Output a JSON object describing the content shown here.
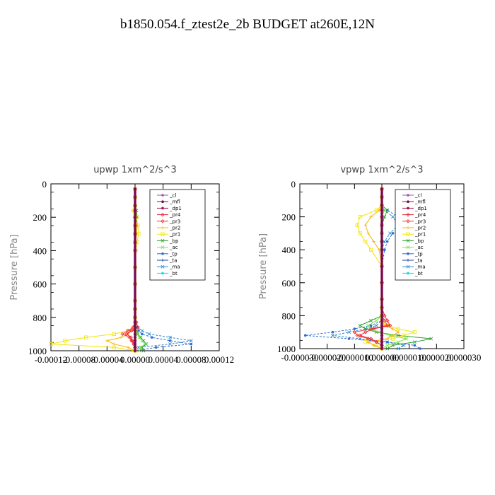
{
  "title": "b1850.054.f_ztest2e_2b  BUDGET at260E,12N",
  "colors": {
    "_cl": "#9b59b6",
    "_mfl": "#7a0a4a",
    "_dp1": "#a0104a",
    "_pr4": "#e8293a",
    "_pr3": "#f03c3c",
    "_pr2": "#ffb300",
    "_pr1": "#f2e600",
    "_bp": "#2ca02c",
    "_ac": "#7be34a",
    "_tp": "#2a6fd6",
    "_ta": "#1f3fa0",
    "_ma": "#2a88c8",
    "_bt": "#18d8e8"
  },
  "chart_data": [
    {
      "type": "line",
      "orientation": "vertical-profile",
      "title": "upwp   1xm^2/s^3",
      "ylabel": "Pressure [hPa]",
      "xlabel": "",
      "xlim": [
        -0.00012,
        0.00012
      ],
      "ylim": [
        1000,
        0
      ],
      "x_tick_labels": [
        "-0.00012",
        "-0.00008",
        "-0.00004",
        "0.00000",
        "0.00004",
        "0.00008",
        "0.00012"
      ],
      "y_tick_labels": [
        "0",
        "200",
        "400",
        "600",
        "800",
        "1000"
      ],
      "x_ticks": [
        -0.00012,
        -8e-05,
        -4e-05,
        0,
        4e-05,
        8e-05,
        0.00012
      ],
      "y_ticks": [
        0,
        200,
        400,
        600,
        800,
        1000
      ],
      "legend": [
        "_cl",
        "_mfl",
        "_dp1",
        "_pr4",
        "_pr3",
        "_pr2",
        "_pr1",
        "_bp",
        "_ac",
        "_tp",
        "_ta",
        "_ma",
        "_bt"
      ],
      "legend_position": "top-right",
      "pressure": [
        30,
        80,
        130,
        160,
        200,
        250,
        300,
        350,
        400,
        500,
        600,
        700,
        750,
        800,
        830,
        860,
        880,
        900,
        920,
        940,
        960,
        980,
        1000
      ],
      "series": [
        {
          "name": "_cl",
          "values": [
            0,
            0,
            0,
            0,
            0,
            0,
            0,
            0,
            0,
            0,
            0,
            0,
            0,
            0,
            0,
            0,
            0,
            0,
            0,
            0,
            0,
            0,
            0
          ]
        },
        {
          "name": "_mfl",
          "values": [
            0,
            0,
            0,
            0,
            0,
            0,
            0,
            0,
            0,
            0,
            0,
            0,
            0,
            0,
            0,
            0,
            0,
            0,
            0,
            0,
            0,
            0,
            0
          ]
        },
        {
          "name": "_dp1",
          "values": [
            0,
            0,
            0,
            0,
            0,
            0,
            0,
            0,
            0,
            0,
            0,
            0,
            0,
            0,
            0,
            0,
            0,
            0,
            0,
            0,
            0,
            0,
            0
          ]
        },
        {
          "name": "_pr4",
          "values": [
            0,
            0,
            0,
            0,
            0,
            0,
            0,
            0,
            0,
            0,
            0,
            0,
            0,
            0,
            2e-06,
            4e-06,
            -5e-06,
            -1.2e-05,
            -6e-06,
            -4e-06,
            -2e-06,
            0,
            0
          ]
        },
        {
          "name": "_pr3",
          "values": [
            0,
            0,
            0,
            0,
            0,
            0,
            0,
            0,
            0,
            0,
            0,
            0,
            0,
            0,
            0,
            -3e-06,
            -1e-05,
            -1.8e-05,
            -8e-06,
            -5e-06,
            -2e-06,
            0,
            0
          ]
        },
        {
          "name": "_pr2",
          "values": [
            0,
            0,
            0,
            -2e-06,
            -1e-06,
            3e-06,
            2e-06,
            1e-06,
            0,
            0,
            0,
            0,
            0,
            0,
            0,
            0,
            -5e-06,
            -1e-05,
            -2e-05,
            -4e-05,
            -3e-05,
            -1e-05,
            0
          ]
        },
        {
          "name": "_pr1",
          "values": [
            0,
            0,
            0,
            -2e-06,
            2e-06,
            4e-06,
            5e-06,
            3e-06,
            1e-06,
            0,
            0,
            0,
            0,
            0,
            0,
            -2e-06,
            -1e-05,
            -3e-05,
            -7e-05,
            -0.0001,
            -0.00012,
            -3e-05,
            0
          ]
        },
        {
          "name": "_bp",
          "values": [
            0,
            0,
            0,
            2e-06,
            3e-06,
            1e-06,
            0,
            0,
            0,
            0,
            0,
            0,
            0,
            0,
            0,
            0,
            2e-06,
            4e-06,
            8e-06,
            1.2e-05,
            1.6e-05,
            1e-05,
            1.2e-05
          ]
        },
        {
          "name": "_ac",
          "values": [
            0,
            0,
            0,
            1e-06,
            2e-06,
            0,
            0,
            0,
            0,
            0,
            0,
            0,
            0,
            0,
            0,
            0,
            2e-06,
            3e-06,
            6e-06,
            1e-05,
            1.4e-05,
            8e-06,
            6e-06
          ]
        },
        {
          "name": "_tp",
          "values": [
            0,
            0,
            0,
            0,
            0,
            0,
            0,
            0,
            0,
            0,
            0,
            0,
            0,
            0,
            0,
            2e-06,
            5e-06,
            1e-05,
            2.4e-05,
            5e-05,
            8e-05,
            3e-05,
            0
          ]
        },
        {
          "name": "_ta",
          "values": [
            0,
            0,
            0,
            0,
            0,
            0,
            0,
            0,
            0,
            0,
            0,
            0,
            0,
            0,
            0,
            0,
            0,
            0,
            0,
            0,
            0,
            0,
            0
          ]
        },
        {
          "name": "_ma",
          "values": [
            0,
            0,
            0,
            0,
            0,
            0,
            0,
            0,
            0,
            0,
            0,
            0,
            0,
            0,
            0,
            4e-06,
            1e-05,
            2e-05,
            5e-05,
            8e-05,
            5e-05,
            5e-06,
            0
          ]
        },
        {
          "name": "_bt",
          "values": [
            0,
            0,
            0,
            0,
            0,
            0,
            0,
            0,
            0,
            0,
            0,
            0,
            0,
            0,
            0,
            0,
            0,
            0,
            0,
            0,
            0,
            0,
            0
          ]
        }
      ]
    },
    {
      "type": "line",
      "orientation": "vertical-profile",
      "title": "vpwp   1xm^2/s^3",
      "ylabel": "Pressure [hPa]",
      "xlabel": "",
      "xlim": [
        -3e-05,
        3e-05
      ],
      "ylim": [
        1000,
        0
      ],
      "x_tick_labels": [
        "-0.000030",
        "-0.000020",
        "-0.000010",
        "0.000000",
        "0.000010",
        "0.000020",
        "0.000030"
      ],
      "y_tick_labels": [
        "0",
        "200",
        "400",
        "600",
        "800",
        "1000"
      ],
      "x_ticks": [
        -3e-05,
        -2e-05,
        -1e-05,
        0,
        1e-05,
        2e-05,
        3e-05
      ],
      "y_ticks": [
        0,
        200,
        400,
        600,
        800,
        1000
      ],
      "legend": [
        "_cl",
        "_mfl",
        "_dp1",
        "_pr4",
        "_pr3",
        "_pr2",
        "_pr1",
        "_bp",
        "_ac",
        "_tp",
        "_ta",
        "_ma",
        "_bt"
      ],
      "legend_position": "top-right",
      "pressure": [
        30,
        80,
        130,
        160,
        200,
        250,
        300,
        350,
        400,
        500,
        600,
        700,
        750,
        800,
        830,
        860,
        880,
        900,
        920,
        940,
        960,
        980,
        1000
      ],
      "series": [
        {
          "name": "_cl",
          "values": [
            0,
            0,
            0,
            0,
            0,
            0,
            0,
            0,
            0,
            0,
            0,
            0,
            0,
            0,
            0,
            0,
            0,
            0,
            0,
            0,
            0,
            0,
            0
          ]
        },
        {
          "name": "_mfl",
          "values": [
            0,
            0,
            0,
            0,
            0,
            0,
            0,
            0,
            0,
            0,
            0,
            0,
            0,
            0,
            0,
            0,
            0,
            0,
            0,
            0,
            0,
            0,
            0
          ]
        },
        {
          "name": "_dp1",
          "values": [
            0,
            0,
            0,
            0,
            0,
            0,
            0,
            0,
            0,
            0,
            0,
            0,
            0,
            0,
            0,
            0,
            0,
            0,
            0,
            0,
            0,
            0,
            0
          ]
        },
        {
          "name": "_pr4",
          "values": [
            0,
            0,
            0,
            0,
            0,
            0,
            0,
            0,
            0,
            0,
            0,
            0,
            0,
            1e-06,
            2e-06,
            3e-06,
            -3e-06,
            -6e-06,
            -8e-06,
            -4e-06,
            -2e-06,
            0,
            0
          ]
        },
        {
          "name": "_pr3",
          "values": [
            0,
            0,
            0,
            0,
            0,
            0,
            0,
            0,
            0,
            0,
            0,
            0,
            0,
            0,
            1e-06,
            2e-06,
            -4e-06,
            -1e-05,
            -9e-06,
            -5e-06,
            -2e-06,
            0,
            0
          ]
        },
        {
          "name": "_pr2",
          "values": [
            0,
            0,
            0,
            -1e-06,
            -4e-06,
            -6e-06,
            -5e-06,
            -3e-06,
            -1e-06,
            0,
            0,
            0,
            0,
            0,
            0,
            1e-06,
            4e-06,
            6e-06,
            4e-06,
            2e-06,
            -5e-06,
            -3e-06,
            0
          ]
        },
        {
          "name": "_pr1",
          "values": [
            0,
            0,
            0,
            -2e-06,
            -8e-06,
            -9e-06,
            -8e-06,
            -6e-06,
            -4e-06,
            0,
            0,
            0,
            0,
            0,
            0,
            2e-06,
            6e-06,
            1.2e-05,
            8e-06,
            4e-06,
            -6e-06,
            -2e-06,
            0
          ]
        },
        {
          "name": "_bp",
          "values": [
            0,
            0,
            0,
            2e-06,
            1e-06,
            0,
            0,
            0,
            0,
            0,
            0,
            0,
            0,
            0,
            -4e-06,
            -8e-06,
            -6e-06,
            -2e-06,
            6e-06,
            1.8e-05,
            1.2e-05,
            4e-06,
            2e-06
          ]
        },
        {
          "name": "_ac",
          "values": [
            0,
            0,
            0,
            1e-06,
            0,
            0,
            0,
            0,
            0,
            0,
            0,
            0,
            0,
            0,
            -2e-06,
            -5e-06,
            -4e-06,
            -1e-06,
            3e-06,
            9e-06,
            6e-06,
            2e-06,
            0
          ]
        },
        {
          "name": "_tp",
          "values": [
            0,
            0,
            0,
            2e-06,
            6e-06,
            1e-05,
            4e-06,
            2e-06,
            1e-06,
            0,
            0,
            0,
            0,
            0,
            0,
            -4e-06,
            -1e-05,
            -1.8e-05,
            -2.8e-05,
            -1.2e-05,
            2e-06,
            1.2e-05,
            1.4e-05
          ]
        },
        {
          "name": "_ta",
          "values": [
            0,
            0,
            0,
            0,
            0,
            0,
            0,
            0,
            0,
            0,
            0,
            0,
            0,
            0,
            0,
            0,
            0,
            0,
            0,
            0,
            0,
            0,
            0
          ]
        },
        {
          "name": "_ma",
          "values": [
            0,
            0,
            0,
            1e-06,
            4e-06,
            6e-06,
            3e-06,
            1e-06,
            0,
            0,
            0,
            0,
            0,
            0,
            0,
            -2e-06,
            -6e-06,
            -1.2e-05,
            -1.8e-05,
            -8e-06,
            2e-06,
            8e-06,
            6e-06
          ]
        },
        {
          "name": "_bt",
          "values": [
            0,
            0,
            0,
            0,
            0,
            0,
            0,
            0,
            0,
            0,
            0,
            0,
            0,
            0,
            0,
            0,
            0,
            0,
            0,
            0,
            0,
            0,
            0
          ]
        }
      ]
    }
  ]
}
